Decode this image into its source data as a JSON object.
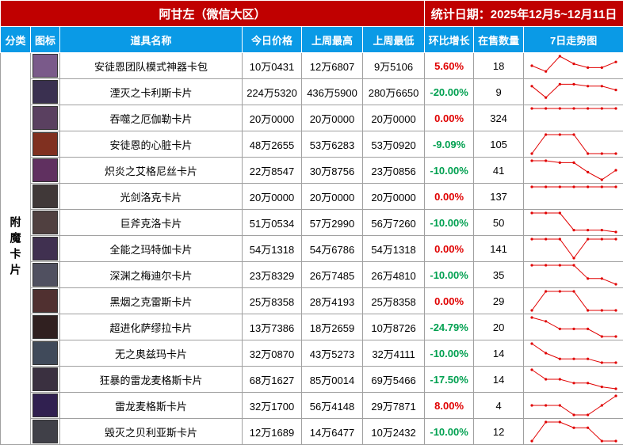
{
  "header": {
    "title": "阿甘左（微信大区）",
    "date": "统计日期：2025年12月5~12月11日"
  },
  "table": {
    "columns": [
      "分类",
      "图标",
      "道具名称",
      "今日价格",
      "上周最高",
      "上周最低",
      "环比增长",
      "在售数量",
      "7日走势图"
    ],
    "category": "附魔卡片",
    "rows": [
      {
        "name": "安徒恩团队模式神器卡包",
        "today": "10万0431",
        "high": "12万6807",
        "low": "9万5106",
        "change": "5.60%",
        "count": 18,
        "trend": [
          50,
          20,
          100,
          60,
          40,
          40,
          70
        ]
      },
      {
        "name": "湮灭之卡利斯卡片",
        "today": "224万5320",
        "high": "436万5900",
        "low": "280万6650",
        "change": "-20.00%",
        "count": 9,
        "trend": [
          80,
          20,
          90,
          90,
          80,
          80,
          60
        ]
      },
      {
        "name": "吞噬之厄伽勒卡片",
        "today": "20万0000",
        "high": "20万0000",
        "low": "20万0000",
        "change": "0.00%",
        "count": 324,
        "trend": [
          100,
          100,
          100,
          100,
          100,
          100,
          100
        ]
      },
      {
        "name": "安徒恩的心脏卡片",
        "today": "48万2655",
        "high": "53万6283",
        "low": "53万0920",
        "change": "-9.09%",
        "count": 105,
        "trend": [
          0,
          100,
          100,
          100,
          0,
          0,
          0
        ]
      },
      {
        "name": "炽炎之艾格尼丝卡片",
        "today": "22万8547",
        "high": "30万8756",
        "low": "23万0856",
        "change": "-10.00%",
        "count": 41,
        "trend": [
          100,
          100,
          90,
          90,
          40,
          0,
          50
        ]
      },
      {
        "name": "光剑洛克卡片",
        "today": "20万0000",
        "high": "20万0000",
        "low": "20万0000",
        "change": "0.00%",
        "count": 137,
        "trend": [
          100,
          100,
          100,
          100,
          100,
          100,
          100
        ]
      },
      {
        "name": "巨斧克洛卡片",
        "today": "51万0534",
        "high": "57万2990",
        "low": "56万7260",
        "change": "-10.00%",
        "count": 50,
        "trend": [
          100,
          100,
          100,
          10,
          10,
          10,
          0
        ]
      },
      {
        "name": "全能之玛特伽卡片",
        "today": "54万1318",
        "high": "54万6786",
        "low": "54万1318",
        "change": "0.00%",
        "count": 141,
        "trend": [
          100,
          100,
          100,
          0,
          100,
          100,
          100
        ]
      },
      {
        "name": "深渊之梅迪尔卡片",
        "today": "23万8329",
        "high": "26万7485",
        "low": "26万4810",
        "change": "-10.00%",
        "count": 35,
        "trend": [
          100,
          100,
          100,
          100,
          30,
          30,
          0
        ]
      },
      {
        "name": "黑烟之克雷斯卡片",
        "today": "25万8358",
        "high": "28万4193",
        "low": "25万8358",
        "change": "0.00%",
        "count": 29,
        "trend": [
          0,
          100,
          100,
          100,
          0,
          0,
          0
        ]
      },
      {
        "name": "超进化萨缪拉卡片",
        "today": "13万7386",
        "high": "18万2659",
        "low": "10万8726",
        "change": "-24.79%",
        "count": 20,
        "trend": [
          100,
          80,
          40,
          40,
          40,
          0,
          0
        ]
      },
      {
        "name": "无之奥兹玛卡片",
        "today": "32万0870",
        "high": "43万5273",
        "low": "32万4111",
        "change": "-10.00%",
        "count": 14,
        "trend": [
          100,
          50,
          20,
          20,
          20,
          0,
          0
        ]
      },
      {
        "name": "狂暴的雷龙麦格斯卡片",
        "today": "68万1627",
        "high": "85万0014",
        "low": "69万5466",
        "change": "-17.50%",
        "count": 14,
        "trend": [
          100,
          50,
          50,
          30,
          30,
          10,
          0
        ]
      },
      {
        "name": "雷龙麦格斯卡片",
        "today": "32万1700",
        "high": "56万4148",
        "low": "29万7871",
        "change": "8.00%",
        "count": 4,
        "trend": [
          50,
          50,
          50,
          0,
          0,
          50,
          100
        ]
      },
      {
        "name": "毁灭之贝利亚斯卡片",
        "today": "12万1689",
        "high": "14万6477",
        "low": "10万2432",
        "change": "-10.00%",
        "count": 12,
        "trend": [
          0,
          100,
          100,
          70,
          70,
          0,
          0
        ]
      }
    ]
  }
}
